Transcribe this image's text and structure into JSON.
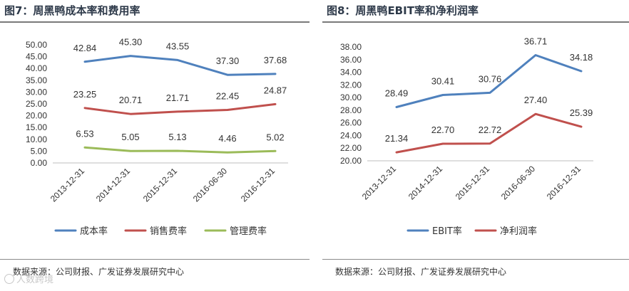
{
  "chart_data": [
    {
      "type": "line",
      "title": "图7：周黑鸭成本率和费用率",
      "categories": [
        "2013-12-31",
        "2014-12-31",
        "2015-12-31",
        "2016-06-30",
        "2016-12-31"
      ],
      "series": [
        {
          "name": "成本率",
          "color": "#4f81bd",
          "values": [
            42.84,
            45.3,
            43.55,
            37.3,
            37.68
          ],
          "labels": [
            "42.84",
            "45.30",
            "43.55",
            "37.30",
            "37.68"
          ]
        },
        {
          "name": "销售费率",
          "color": "#c0504d",
          "values": [
            23.25,
            20.71,
            21.71,
            22.45,
            24.87
          ],
          "labels": [
            "23.25",
            "20.71",
            "21.71",
            "22.45",
            "24.87"
          ]
        },
        {
          "name": "管理费率",
          "color": "#9bbb59",
          "values": [
            6.53,
            5.05,
            5.13,
            4.46,
            5.02
          ],
          "labels": [
            "6.53",
            "5.05",
            "5.13",
            "4.46",
            "5.02"
          ]
        }
      ],
      "ylim": [
        0,
        50
      ],
      "yticks": [
        "0.00",
        "5.00",
        "10.00",
        "15.00",
        "20.00",
        "25.00",
        "30.00",
        "35.00",
        "40.00",
        "45.00",
        "50.00"
      ],
      "legend": "bottom",
      "source": "数据来源：公司财报、广发证券发展研究中心"
    },
    {
      "type": "line",
      "title": "图8：周黑鸭EBIT率和净利润率",
      "categories": [
        "2013-12-31",
        "2014-12-31",
        "2015-12-31",
        "2016-06-30",
        "2016-12-31"
      ],
      "series": [
        {
          "name": "EBIT率",
          "color": "#4f81bd",
          "values": [
            28.49,
            30.41,
            30.76,
            36.71,
            34.18
          ],
          "labels": [
            "28.49",
            "30.41",
            "30.76",
            "36.71",
            "34.18"
          ]
        },
        {
          "name": "净利润率",
          "color": "#c0504d",
          "values": [
            21.34,
            22.7,
            22.72,
            27.4,
            25.39
          ],
          "labels": [
            "21.34",
            "22.70",
            "22.72",
            "27.40",
            "25.39"
          ]
        }
      ],
      "ylim": [
        20,
        38
      ],
      "yticks": [
        "20.00",
        "22.00",
        "24.00",
        "26.00",
        "28.00",
        "30.00",
        "32.00",
        "34.00",
        "36.00",
        "38.00"
      ],
      "legend": "bottom",
      "source": "数据来源：公司财报、广发证券发展研究中心"
    }
  ],
  "watermark": "人数跨境"
}
